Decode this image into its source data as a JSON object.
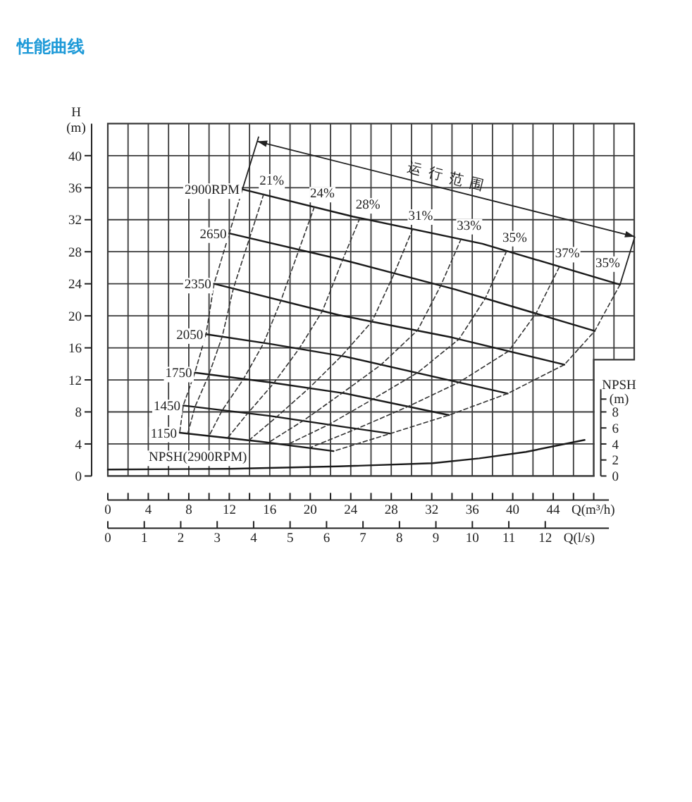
{
  "chart_data": {
    "type": "line",
    "title": "性能曲线",
    "xlabel": "Q(m³/h)",
    "x2label": "Q(l/s)",
    "ylabel": "H\n(m)",
    "y2label": "NPSH\n(m)",
    "xlim": [
      0,
      52
    ],
    "xticks": [
      0,
      {
        "value": 2,
        "label": null
      },
      4,
      {
        "value": 6,
        "label": null
      },
      8,
      {
        "value": 10,
        "label": null
      },
      12,
      {
        "value": 14,
        "label": null
      },
      16,
      {
        "value": 18,
        "label": null
      },
      20,
      {
        "value": 22,
        "label": null
      },
      24,
      {
        "value": 26,
        "label": null
      },
      28,
      {
        "value": 30,
        "label": null
      },
      32,
      {
        "value": 34,
        "label": null
      },
      36,
      {
        "value": 38,
        "label": null
      },
      40,
      {
        "value": 42,
        "label": null
      },
      44,
      {
        "value": 46,
        "label": null
      },
      {
        "value": 48,
        "label": null
      },
      {
        "value": 50,
        "label": null
      }
    ],
    "x2lim": [
      0,
      14.44
    ],
    "x2ticks": [
      0,
      1,
      2,
      3,
      4,
      5,
      6,
      7,
      8,
      9,
      10,
      11,
      12
    ],
    "ylim": [
      0,
      44
    ],
    "yticks": [
      0,
      4,
      8,
      12,
      16,
      20,
      24,
      28,
      32,
      36,
      40
    ],
    "y2lim": [
      0,
      44
    ],
    "y2ticks": [
      0,
      2,
      4,
      6,
      8
    ],
    "grid": true,
    "annotations": [
      "运行范围"
    ],
    "series": [
      {
        "name": "2900RPM",
        "color": "#1a1a1a",
        "x": [
          13.3,
          24.2,
          37,
          50.6
        ],
        "values": [
          35.8,
          32.4,
          29.0,
          23.9
        ]
      },
      {
        "name": "2650",
        "color": "#1a1a1a",
        "x": [
          12,
          23.5,
          34.3,
          48.1
        ],
        "values": [
          30.3,
          26.9,
          23.3,
          18.1
        ]
      },
      {
        "name": "2350",
        "color": "#1a1a1a",
        "x": [
          10.5,
          22.8,
          34,
          45.1
        ],
        "values": [
          24.0,
          20.1,
          17.3,
          13.9
        ]
      },
      {
        "name": "2050",
        "color": "#1a1a1a",
        "x": [
          9.7,
          16,
          23.5,
          39.5
        ],
        "values": [
          17.7,
          16.5,
          14.9,
          10.3
        ]
      },
      {
        "name": "1750",
        "color": "#1a1a1a",
        "x": [
          8.6,
          16,
          23.5,
          33.7
        ],
        "values": [
          12.9,
          11.7,
          10.3,
          7.6
        ]
      },
      {
        "name": "1450",
        "color": "#1a1a1a",
        "x": [
          7.45,
          16,
          23.5,
          27.9
        ],
        "values": [
          8.8,
          7.5,
          6.1,
          5.3
        ]
      },
      {
        "name": "1150",
        "color": "#1a1a1a",
        "x": [
          7.1,
          15,
          22.3
        ],
        "values": [
          5.4,
          4.3,
          3.1
        ]
      },
      {
        "name": "NPSH(2900RPM)",
        "color": "#1a1a1a",
        "axis": "y2",
        "x": [
          0,
          12,
          22.8,
          32.1,
          36.7,
          41.3,
          47.1
        ],
        "values": [
          0.8,
          0.9,
          1.2,
          1.6,
          2.2,
          3.0,
          4.5
        ]
      },
      {
        "color": "#333333",
        "line_style": "dashed",
        "x": [
          13.3,
          12,
          10.5,
          9.7,
          8.6,
          7.45,
          7.1
        ],
        "values": [
          35.8,
          30.3,
          24.0,
          17.7,
          12.9,
          8.8,
          5.4
        ]
      },
      {
        "name": "21%",
        "color": "#333333",
        "line_style": "dashed",
        "x": [
          15.4,
          14.0,
          12.4,
          11.3,
          10.0,
          8.6,
          7.9
        ],
        "values": [
          35.2,
          29.7,
          23.4,
          17.4,
          12.7,
          8.6,
          5.3
        ]
      },
      {
        "name": "24%",
        "color": "#333333",
        "line_style": "dashed",
        "x": [
          20.4,
          18.9,
          17.1,
          15.4,
          13.4,
          11.3,
          10.0
        ],
        "values": [
          33.6,
          28.3,
          21.9,
          16.6,
          12.1,
          8.2,
          5.0
        ]
      },
      {
        "name": "28%",
        "color": "#333333",
        "line_style": "dashed",
        "x": [
          24.9,
          23.2,
          21.2,
          18.9,
          16.4,
          13.8,
          11.8
        ],
        "values": [
          32.2,
          27.0,
          20.6,
          15.9,
          11.6,
          7.8,
          4.7
        ]
      },
      {
        "name": "31%",
        "color": "#333333",
        "line_style": "dashed",
        "x": [
          30.1,
          28.3,
          26.1,
          23.1,
          19.9,
          16.7,
          13.9
        ],
        "values": [
          30.8,
          25.3,
          19.3,
          15.0,
          11.0,
          7.4,
          4.4
        ]
      },
      {
        "name": "33%",
        "color": "#333333",
        "line_style": "dashed",
        "x": [
          34.9,
          32.9,
          30.6,
          27.0,
          23.2,
          19.3,
          15.9
        ],
        "values": [
          29.6,
          23.8,
          18.2,
          13.9,
          10.4,
          6.9,
          4.2
        ]
      },
      {
        "name": "35%",
        "color": "#333333",
        "line_style": "dashed",
        "x": [
          39.4,
          37.3,
          34.7,
          30.6,
          26.2,
          21.8,
          17.7
        ],
        "values": [
          28.1,
          22.2,
          17.1,
          12.9,
          9.6,
          6.4,
          3.9
        ]
      },
      {
        "name": "37%",
        "color": "#333333",
        "line_style": "dashed",
        "x": [
          44.6,
          42.3,
          39.6,
          34.7,
          29.7,
          24.6,
          19.9
        ],
        "values": [
          26.1,
          20.3,
          15.6,
          11.7,
          8.7,
          5.9,
          3.5
        ]
      },
      {
        "name": "35%",
        "color": "#333333",
        "line_style": "dashed",
        "x": [
          50.6,
          48.1,
          45.1,
          39.5,
          33.7,
          27.9,
          22.3
        ],
        "values": [
          23.9,
          18.1,
          13.9,
          10.3,
          7.6,
          5.3,
          3.1
        ]
      }
    ]
  }
}
